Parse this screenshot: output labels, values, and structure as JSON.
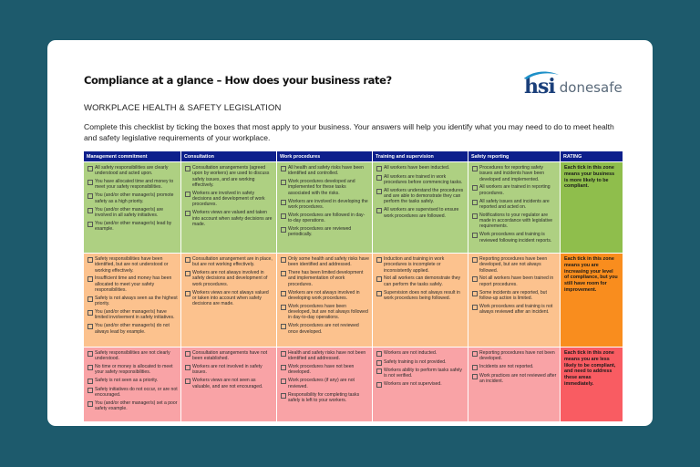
{
  "document": {
    "title": "Compliance at a glance – How does your business rate?",
    "subtitle": "WORKPLACE HEALTH & SAFETY LEGISLATION",
    "intro": "Complete this checklist by ticking the boxes that most apply to your business. Your answers will help you identify what you may need to do to meet health and safety legislative requirements of your workplace."
  },
  "logo": {
    "mark": "hsi",
    "wordmark": "donesafe",
    "mark_color": "#1a3f7a",
    "swoosh_color": "#1e90c8"
  },
  "colors": {
    "page_background": "#1d5a6c",
    "header_background": "#0d1f8c",
    "zone_green": "#aed082",
    "zone_orange": "#fcc28e",
    "zone_red": "#f9a3a6",
    "rating_green": "#8fbe4c",
    "rating_orange": "#f98d1e",
    "rating_red": "#f95c62"
  },
  "table": {
    "headers": [
      "Management commitment",
      "Consultation",
      "Work procedures",
      "Training and supervision",
      "Safety reporting",
      "RATING"
    ],
    "rows": [
      {
        "zone": "green",
        "columns": [
          [
            "All safety responsibilities are clearly understood and acted upon.",
            "You have allocated time and money to meet your safety responsibilities.",
            "You (and/or other manager/s) promote safety as a high priority.",
            "You (and/or other manager/s) are involved in all safety initiatives.",
            "You (and/or other manager/s) lead by example."
          ],
          [
            "Consultation arrangements (agreed upon by workers) are used to discuss safety issues, and are working effectively.",
            "Workers are involved in safety decisions and development of work procedures.",
            "Workers views are valued and taken into account when safety decisions are made."
          ],
          [
            "All health and safety risks have been identified and controlled.",
            "Work procedures developed and implemented for these tasks associated with the risks.",
            "Workers are involved in developing the work procedures.",
            "Work procedures are followed in day-to-day operations.",
            "Work procedures are reviewed periodically."
          ],
          [
            "All workers have been inducted.",
            "All workers are trained in work procedures before commencing tasks.",
            "All workers understand the procedures and are able to demonstrate they can perform the tasks safely.",
            "All workers are supervised to ensure work procedures are followed."
          ],
          [
            "Procedures for reporting safety issues and incidents have been developed and implemented.",
            "All workers are trained in reporting procedures.",
            "All safety issues and incidents are reported and acted on.",
            "Notifications to your regulator are made in accordance with legislative requirements.",
            "Work procedures and training is reviewed following incident reports."
          ]
        ],
        "rating": "Each tick in this zone means your business is more likely to be compliant."
      },
      {
        "zone": "orange",
        "columns": [
          [
            "Safety responsibilities have been identified, but are not understood or working effectively.",
            "Insufficient time and money has been allocated to meet your safety responsibilities.",
            "Safety is not always seen as the highest priority.",
            "You (and/or other manager/s) have limited involvement in safety initiatives.",
            "You (and/or other manager/s) do not always lead by example."
          ],
          [
            "Consultation arrangement are in place, but are not working effectively.",
            "Workers are not always involved in safety decisions and development of work procedures.",
            "Workers views are not always valued or taken into account when safety decisions are made."
          ],
          [
            "Only some health and safety risks have been identified and addressed.",
            "There has been limited development and implementation of work procedures.",
            "Workers are not always involved in developing work procedures.",
            "Work procedures have been developed, but are not always followed in day-to-day operations.",
            "Work procedures are not reviewed once developed."
          ],
          [
            "Induction and training in work procedures is incomplete or inconsistently applied.",
            "Not all workers can demonstrate they can perform the tasks safely.",
            "Supervision does not always result in work procedures being followed."
          ],
          [
            "Reporting procedures have been developed, but are not always followed.",
            "Not all workers have been trained in report procedures.",
            "Some incidents are reported, but follow-up action is limited.",
            "Work procedures and training is not always reviewed after an incident."
          ]
        ],
        "rating": "Each tick in this zone means you are increasing your level of compliance, but you still have room for improvement."
      },
      {
        "zone": "red",
        "columns": [
          [
            "Safety responsibilities are not clearly understood.",
            "No time or money is allocated to meet your safety responsibilities.",
            "Safety is not seen as a priority.",
            "Safety initiatives do not occur, or are not encouraged.",
            "You (and/or other manager/s) set a poor safety example."
          ],
          [
            "Consultation arrangements have not been established.",
            "Workers are not involved in safety issues.",
            "Workers views are not seen as valuable, and are not encouraged."
          ],
          [
            "Health and safety risks have not been identified and addressed.",
            "Work procedures have not been developed.",
            "Work procedures (if any) are not reviewed.",
            "Responsibility for completing tasks safely is left to your workers."
          ],
          [
            "Workers are not inducted.",
            "Safety training is not provided.",
            "Workers ability to perform tasks safely is not verified.",
            "Workers are not supervised."
          ],
          [
            "Reporting procedures have not been developed.",
            "Incidents are not reported.",
            "Work practices are not reviewed after an incident."
          ]
        ],
        "rating": "Each tick in this zone means you are less likely to be compliant, and need to address these areas immediately."
      }
    ]
  }
}
